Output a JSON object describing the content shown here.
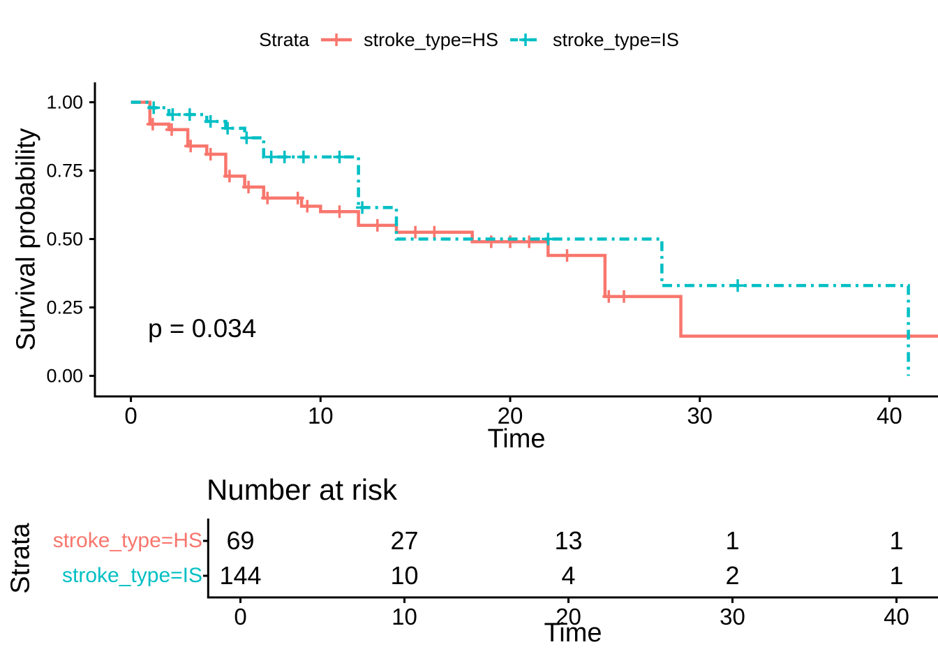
{
  "colors": {
    "hs": "#F8766D",
    "is": "#00BFC4",
    "axis": "#000000",
    "background": "#FFFFFF"
  },
  "legend": {
    "title": "Strata",
    "items": [
      {
        "label": "stroke_type=HS",
        "color_key": "hs",
        "linetype": "solid"
      },
      {
        "label": "stroke_type=IS",
        "color_key": "is",
        "linetype": "dashdot"
      }
    ]
  },
  "main_plot": {
    "ylabel": "Survival probability",
    "xlabel": "Time",
    "pvalue": "p = 0.034",
    "y_tick_labels": [
      "0.00",
      "0.25",
      "0.50",
      "0.75",
      "1.00"
    ]
  },
  "chart_data": {
    "type": "line",
    "subtype": "kaplan-meier-step",
    "title": "",
    "xlabel": "Time",
    "ylabel": "Survival probability",
    "xlim": [
      -2,
      42.6
    ],
    "ylim": [
      0,
      1
    ],
    "x_ticks": [
      0,
      10,
      20,
      30,
      40
    ],
    "y_ticks": [
      0,
      0.25,
      0.5,
      0.75,
      1
    ],
    "annotation": "p = 0.034",
    "legend_position": "top",
    "grid": false,
    "series": [
      {
        "name": "stroke_type=HS",
        "color": "#F8766D",
        "linetype": "solid",
        "step_times": [
          0,
          1,
          2,
          3,
          4,
          5,
          6,
          7,
          9,
          10,
          12,
          14,
          18,
          22,
          25,
          29
        ],
        "step_surv": [
          1.0,
          0.92,
          0.9,
          0.84,
          0.81,
          0.73,
          0.69,
          0.65,
          0.62,
          0.6,
          0.55,
          0.525,
          0.49,
          0.44,
          0.29,
          0.145
        ],
        "end_time": 42.6,
        "censor_times": [
          1.15,
          2.15,
          3.15,
          4.2,
          5.2,
          6.2,
          7.2,
          8.8,
          9.3,
          11,
          13,
          15,
          16,
          19,
          20,
          21,
          23,
          25.2,
          26
        ]
      },
      {
        "name": "stroke_type=IS",
        "color": "#00BFC4",
        "linetype": "dashdot",
        "step_times": [
          0,
          1,
          2,
          4,
          5,
          6,
          7,
          12,
          14,
          28,
          41
        ],
        "step_surv": [
          1.0,
          0.98,
          0.955,
          0.93,
          0.905,
          0.87,
          0.8,
          0.615,
          0.5,
          0.33,
          0.0
        ],
        "end_time": 41,
        "censor_times": [
          1.2,
          2.2,
          3.1,
          4.2,
          5.1,
          6.1,
          7.4,
          8.1,
          9.1,
          11,
          12.2,
          22,
          32
        ]
      }
    ]
  },
  "risk_table": {
    "title": "Number at risk",
    "ylabel": "Strata",
    "xlabel": "Time",
    "x_ticks": [
      0,
      10,
      20,
      30,
      40
    ],
    "rows": [
      {
        "label": "stroke_type=HS",
        "color_key": "hs",
        "counts": [
          69,
          27,
          13,
          1,
          1
        ]
      },
      {
        "label": "stroke_type=IS",
        "color_key": "is",
        "counts": [
          144,
          10,
          4,
          2,
          1
        ]
      }
    ]
  }
}
